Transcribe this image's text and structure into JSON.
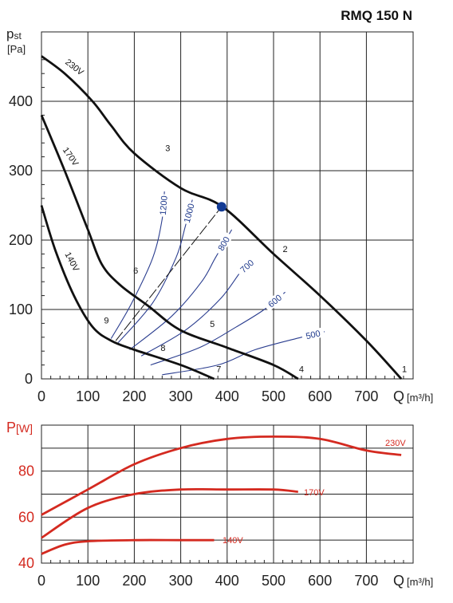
{
  "title": "RMQ 150 N",
  "colors": {
    "curve": "#111111",
    "efficiency": "#2a3d8f",
    "power": "#d42a20",
    "point": "#123a94",
    "grid": "#222222"
  },
  "chart_data": [
    {
      "type": "line",
      "title": "RMQ 150 N",
      "xlabel": "Q [m³/h]",
      "ylabel": "pst [Pa]",
      "xlim": [
        0,
        780
      ],
      "ylim": [
        0,
        500
      ],
      "grid": true,
      "x_ticks": [
        "0",
        "100",
        "200",
        "300",
        "400",
        "500",
        "600",
        "700"
      ],
      "y_ticks": [
        "0",
        "100",
        "200",
        "300",
        "400"
      ],
      "series": [
        {
          "name": "230V",
          "points": [
            [
              0,
              465
            ],
            [
              50,
              440
            ],
            [
              110,
              400
            ],
            [
              150,
              365
            ],
            [
              200,
              325
            ],
            [
              300,
              275
            ],
            [
              390,
              248
            ],
            [
              500,
              180
            ],
            [
              600,
              120
            ],
            [
              700,
              55
            ],
            [
              775,
              0
            ]
          ]
        },
        {
          "name": "170V",
          "points": [
            [
              0,
              380
            ],
            [
              50,
              300
            ],
            [
              100,
              215
            ],
            [
              130,
              165
            ],
            [
              170,
              135
            ],
            [
              230,
              105
            ],
            [
              300,
              70
            ],
            [
              400,
              45
            ],
            [
              500,
              20
            ],
            [
              553,
              0
            ]
          ]
        },
        {
          "name": "140V",
          "points": [
            [
              0,
              250
            ],
            [
              30,
              185
            ],
            [
              70,
              120
            ],
            [
              110,
              75
            ],
            [
              150,
              55
            ],
            [
              200,
              42
            ],
            [
              300,
              20
            ],
            [
              372,
              0
            ]
          ]
        }
      ],
      "efficiency_curves": [
        {
          "label": "1200",
          "points": [
            [
              150,
              58
            ],
            [
              195,
              110
            ],
            [
              240,
              175
            ],
            [
              260,
              230
            ],
            [
              265,
              270
            ]
          ]
        },
        {
          "label": "1000",
          "points": [
            [
              165,
              52
            ],
            [
              240,
              110
            ],
            [
              290,
              175
            ],
            [
              310,
              220
            ],
            [
              325,
              258
            ]
          ]
        },
        {
          "label": "800",
          "points": [
            [
              190,
              42
            ],
            [
              280,
              90
            ],
            [
              345,
              140
            ],
            [
              375,
              175
            ],
            [
              410,
              215
            ]
          ]
        },
        {
          "label": "700",
          "points": [
            [
              215,
              33
            ],
            [
              310,
              70
            ],
            [
              385,
              115
            ],
            [
              430,
              155
            ],
            [
              455,
              170
            ]
          ]
        },
        {
          "label": "600",
          "points": [
            [
              235,
              20
            ],
            [
              340,
              45
            ],
            [
              420,
              75
            ],
            [
              480,
              100
            ],
            [
              525,
              125
            ]
          ]
        },
        {
          "label": "500",
          "points": [
            [
              260,
              6
            ],
            [
              380,
              20
            ],
            [
              460,
              42
            ],
            [
              560,
              60
            ],
            [
              610,
              68
            ]
          ]
        }
      ],
      "operating_point": {
        "x": 388,
        "y": 248
      },
      "point_labels": [
        {
          "label": "1",
          "x": 782,
          "y": 10
        },
        {
          "label": "2",
          "x": 525,
          "y": 183
        },
        {
          "label": "3",
          "x": 272,
          "y": 328
        },
        {
          "label": "4",
          "x": 560,
          "y": 10
        },
        {
          "label": "5",
          "x": 368,
          "y": 75
        },
        {
          "label": "6",
          "x": 203,
          "y": 152
        },
        {
          "label": "7",
          "x": 382,
          "y": 10
        },
        {
          "label": "8",
          "x": 262,
          "y": 40
        },
        {
          "label": "9",
          "x": 140,
          "y": 80
        }
      ],
      "curve_labels": [
        {
          "label": "230V",
          "x": 50,
          "y": 455
        },
        {
          "label": "170V",
          "x": 45,
          "y": 330
        },
        {
          "label": "140V",
          "x": 50,
          "y": 180
        }
      ]
    },
    {
      "type": "line",
      "xlabel": "Q [m³/h]",
      "ylabel": "P[W]",
      "xlim": [
        0,
        780
      ],
      "ylim": [
        40,
        100
      ],
      "grid": true,
      "x_ticks": [
        "0",
        "100",
        "200",
        "300",
        "400",
        "500",
        "600",
        "700"
      ],
      "y_ticks": [
        "40",
        "60",
        "80"
      ],
      "series": [
        {
          "name": "230V",
          "points": [
            [
              0,
              61
            ],
            [
              100,
              72
            ],
            [
              200,
              83
            ],
            [
              300,
              90
            ],
            [
              400,
              94
            ],
            [
              500,
              95
            ],
            [
              600,
              94
            ],
            [
              700,
              89
            ],
            [
              775,
              87
            ]
          ]
        },
        {
          "name": "170V",
          "points": [
            [
              0,
              51
            ],
            [
              100,
              64
            ],
            [
              200,
              70
            ],
            [
              300,
              72
            ],
            [
              400,
              72
            ],
            [
              500,
              72
            ],
            [
              553,
              71
            ]
          ]
        },
        {
          "name": "140V",
          "points": [
            [
              0,
              44
            ],
            [
              50,
              48
            ],
            [
              100,
              49.5
            ],
            [
              200,
              50
            ],
            [
              300,
              50
            ],
            [
              372,
              50
            ]
          ]
        }
      ]
    }
  ]
}
